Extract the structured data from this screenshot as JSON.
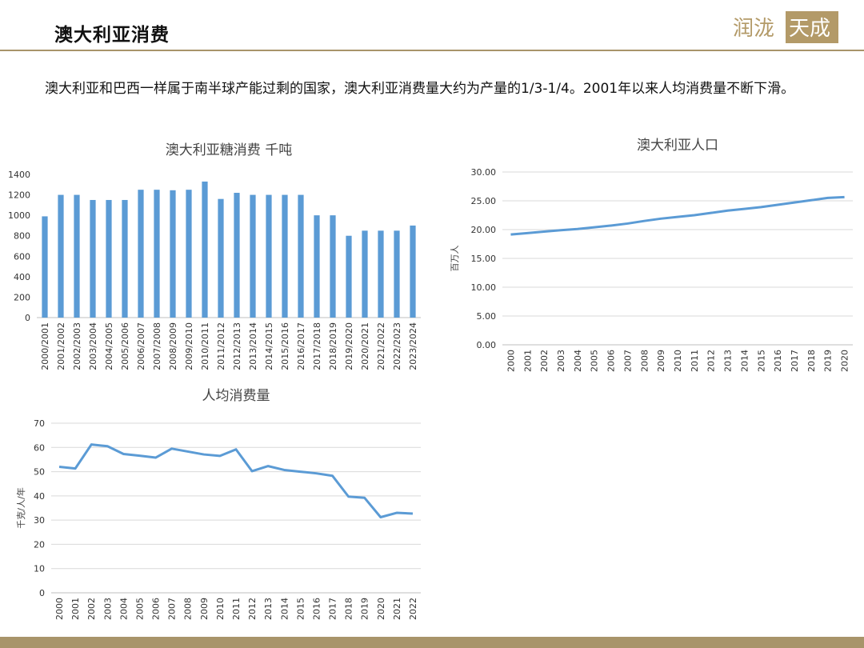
{
  "page": {
    "title": "澳大利亚消费",
    "intro": "澳大利亚和巴西一样属于南半球产能过剩的国家，澳大利亚消费量大约为产量的1/3-1/4。2001年以来人均消费量不断下滑。",
    "logo_text": "润泷天成",
    "colors": {
      "accent": "#a8946a",
      "series": "#5b9bd5",
      "grid": "#d9d9d9"
    }
  },
  "chart_data": [
    {
      "type": "bar",
      "title": "澳大利亚糖消费 千吨",
      "xlabel": "",
      "ylabel": "",
      "ylim": [
        0,
        1400
      ],
      "yticks": [
        0,
        200,
        400,
        600,
        800,
        1000,
        1200,
        1400
      ],
      "grid": false,
      "categories": [
        "2000/2001",
        "2001/2002",
        "2002/2003",
        "2003/2004",
        "2004/2005",
        "2005/2006",
        "2006/2007",
        "2007/2008",
        "2008/2009",
        "2009/2010",
        "2010/2011",
        "2011/2012",
        "2012/2013",
        "2013/2014",
        "2014/2015",
        "2015/2016",
        "2016/2017",
        "2017/2018",
        "2018/2019",
        "2019/2020",
        "2020/2021",
        "2021/2022",
        "2022/2023",
        "2023/2024"
      ],
      "values": [
        990,
        1200,
        1200,
        1150,
        1150,
        1150,
        1250,
        1250,
        1245,
        1250,
        1330,
        1160,
        1220,
        1200,
        1200,
        1200,
        1200,
        1000,
        1000,
        800,
        850,
        850,
        850,
        900
      ]
    },
    {
      "type": "line",
      "title": "澳大利亚人口",
      "xlabel": "",
      "ylabel": "百万人",
      "ylim": [
        0,
        30
      ],
      "yticks": [
        "0.00",
        "5.00",
        "10.00",
        "15.00",
        "20.00",
        "25.00",
        "30.00"
      ],
      "grid": true,
      "x": [
        "2000",
        "2001",
        "2002",
        "2003",
        "2004",
        "2005",
        "2006",
        "2007",
        "2008",
        "2009",
        "2010",
        "2011",
        "2012",
        "2013",
        "2014",
        "2015",
        "2016",
        "2017",
        "2018",
        "2019",
        "2020"
      ],
      "values": [
        19.15,
        19.4,
        19.65,
        19.9,
        20.1,
        20.4,
        20.7,
        21.05,
        21.5,
        21.9,
        22.2,
        22.5,
        22.9,
        23.3,
        23.6,
        23.9,
        24.3,
        24.7,
        25.1,
        25.5,
        25.65
      ]
    },
    {
      "type": "line",
      "title": "人均消费量",
      "xlabel": "",
      "ylabel": "千克/人/年",
      "ylim": [
        0,
        70
      ],
      "yticks": [
        0,
        10,
        20,
        30,
        40,
        50,
        60,
        70
      ],
      "grid": true,
      "x": [
        "2000",
        "2001",
        "2002",
        "2003",
        "2004",
        "2005",
        "2006",
        "2007",
        "2008",
        "2009",
        "2010",
        "2011",
        "2012",
        "2013",
        "2014",
        "2015",
        "2016",
        "2017",
        "2018",
        "2019",
        "2020",
        "2021",
        "2022"
      ],
      "values": [
        52,
        51.3,
        61.2,
        60.5,
        57.3,
        56.6,
        55.8,
        59.5,
        58.3,
        57.1,
        56.5,
        59.2,
        50.2,
        52.3,
        50.7,
        50.0,
        49.3,
        48.3,
        39.7,
        39.2,
        31.2,
        33.0,
        32.7
      ]
    }
  ]
}
